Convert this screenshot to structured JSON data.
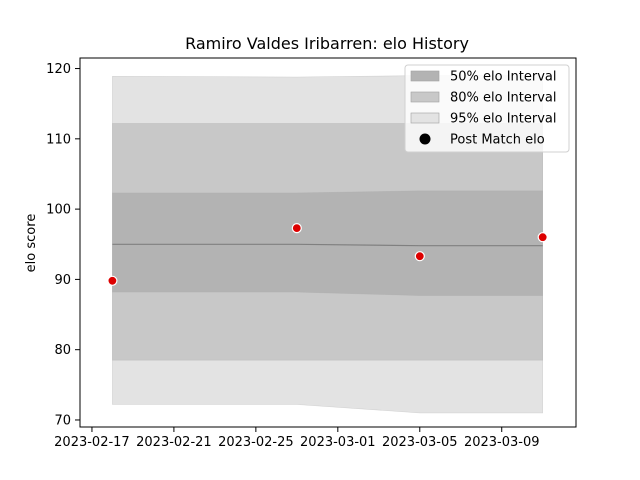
{
  "chart_data": {
    "type": "line",
    "title": "Ramiro Valdes Iribarren: elo History",
    "xlabel": "",
    "ylabel": "elo score",
    "x_axis": {
      "type": "date",
      "range": [
        "2023-02-16T10:00",
        "2023-03-12T15:00"
      ],
      "ticks": [
        "2023-02-17",
        "2023-02-21",
        "2023-02-25",
        "2023-03-01",
        "2023-03-05",
        "2023-03-09"
      ]
    },
    "y_axis": {
      "range": [
        69,
        121.5
      ],
      "ticks": [
        70,
        80,
        90,
        100,
        110,
        120
      ]
    },
    "grid": false,
    "legend_position": "top-right",
    "colors": {
      "band_50": "#b3b3b3",
      "band_80": "#c8c8c8",
      "band_95": "#e3e3e3",
      "mean_line": "#808080",
      "point_fill": "#dd0000",
      "point_edge": "#ffffff",
      "legend_marker": "#000000"
    },
    "series": [
      {
        "name": "95% elo Interval",
        "kind": "band",
        "points": [
          {
            "x": "2023-02-18",
            "low": 72.2,
            "high": 118.9
          },
          {
            "x": "2023-02-27",
            "low": 72.2,
            "high": 118.8
          },
          {
            "x": "2023-03-05",
            "low": 71.0,
            "high": 119.0
          },
          {
            "x": "2023-03-11",
            "low": 71.0,
            "high": 119.0
          }
        ]
      },
      {
        "name": "80% elo Interval",
        "kind": "band",
        "points": [
          {
            "x": "2023-02-18",
            "low": 78.5,
            "high": 112.2
          },
          {
            "x": "2023-02-27",
            "low": 78.5,
            "high": 112.2
          },
          {
            "x": "2023-03-05",
            "low": 78.5,
            "high": 112.2
          },
          {
            "x": "2023-03-11",
            "low": 78.5,
            "high": 112.2
          }
        ]
      },
      {
        "name": "50% elo Interval",
        "kind": "band",
        "points": [
          {
            "x": "2023-02-18",
            "low": 88.2,
            "high": 102.3
          },
          {
            "x": "2023-02-27",
            "low": 88.2,
            "high": 102.3
          },
          {
            "x": "2023-03-05",
            "low": 87.7,
            "high": 102.6
          },
          {
            "x": "2023-03-11",
            "low": 87.7,
            "high": 102.6
          }
        ]
      },
      {
        "name": "",
        "kind": "line",
        "points": [
          {
            "x": "2023-02-18",
            "y": 95.0
          },
          {
            "x": "2023-02-27",
            "y": 95.0
          },
          {
            "x": "2023-03-05",
            "y": 94.8
          },
          {
            "x": "2023-03-11",
            "y": 94.8
          }
        ]
      },
      {
        "name": "Post Match elo",
        "kind": "scatter",
        "points": [
          {
            "x": "2023-02-18",
            "y": 89.8
          },
          {
            "x": "2023-02-27",
            "y": 97.3
          },
          {
            "x": "2023-03-05",
            "y": 93.3
          },
          {
            "x": "2023-03-11",
            "y": 96.0
          }
        ]
      }
    ],
    "legend": [
      {
        "label": "50% elo Interval",
        "marker": "patch",
        "color": "#b3b3b3"
      },
      {
        "label": "80% elo Interval",
        "marker": "patch",
        "color": "#c8c8c8"
      },
      {
        "label": "95% elo Interval",
        "marker": "patch",
        "color": "#e3e3e3"
      },
      {
        "label": "Post Match elo",
        "marker": "dot",
        "color": "#000000"
      }
    ]
  }
}
